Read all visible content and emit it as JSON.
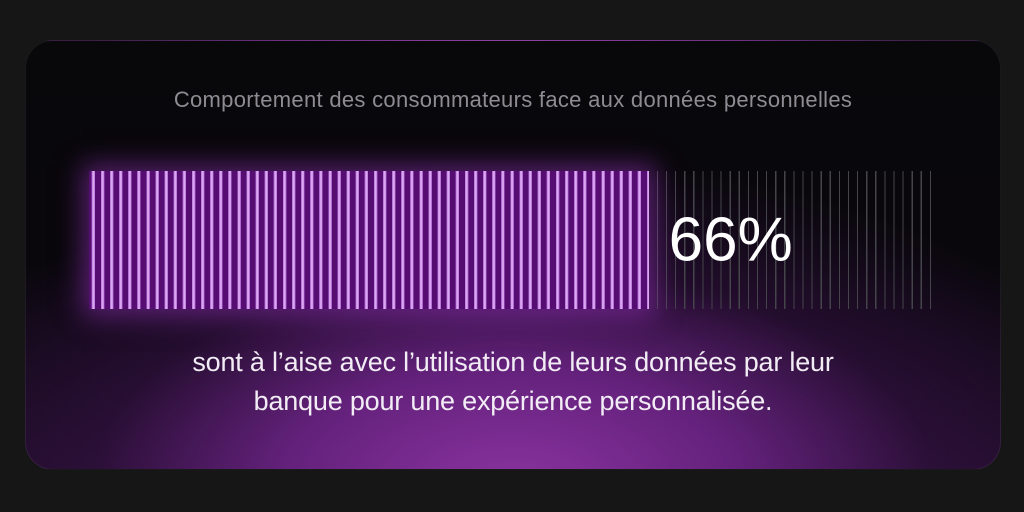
{
  "theme": {
    "page_bg": "#161617",
    "card_bg_top": "#08070a",
    "card_glow": "#8a33a0",
    "card_border": "rgba(255,255,255,0.07)",
    "title_text": "#8e8c92",
    "caption_text": "#f2ecf5",
    "value_text": "#ffffff",
    "fill_base": "#560d72",
    "fill_line": "#dba6f2",
    "fill_line_edge": "#a055c6",
    "fill_glow": "rgba(156,52,196,0.5)",
    "track_line": "#45444b"
  },
  "chart_data": {
    "type": "bar",
    "title": "Comportement des consommateurs face aux données personnelles",
    "series": [
      {
        "name": "Consommateurs à l’aise avec l’utilisation de leurs données par leur banque pour une expérience personnalisée",
        "value": 66
      }
    ],
    "value": 66,
    "max": 100,
    "value_label": "66%",
    "fill_width": "66%",
    "label_left": "calc(66% + 20px)",
    "caption_line1": "sont à l’aise avec l’utilisation de leurs données par leur",
    "caption_line2": "banque pour une expérience personnalisée.",
    "xlabel": "",
    "ylabel": "",
    "legend": "none",
    "grid": "off"
  }
}
